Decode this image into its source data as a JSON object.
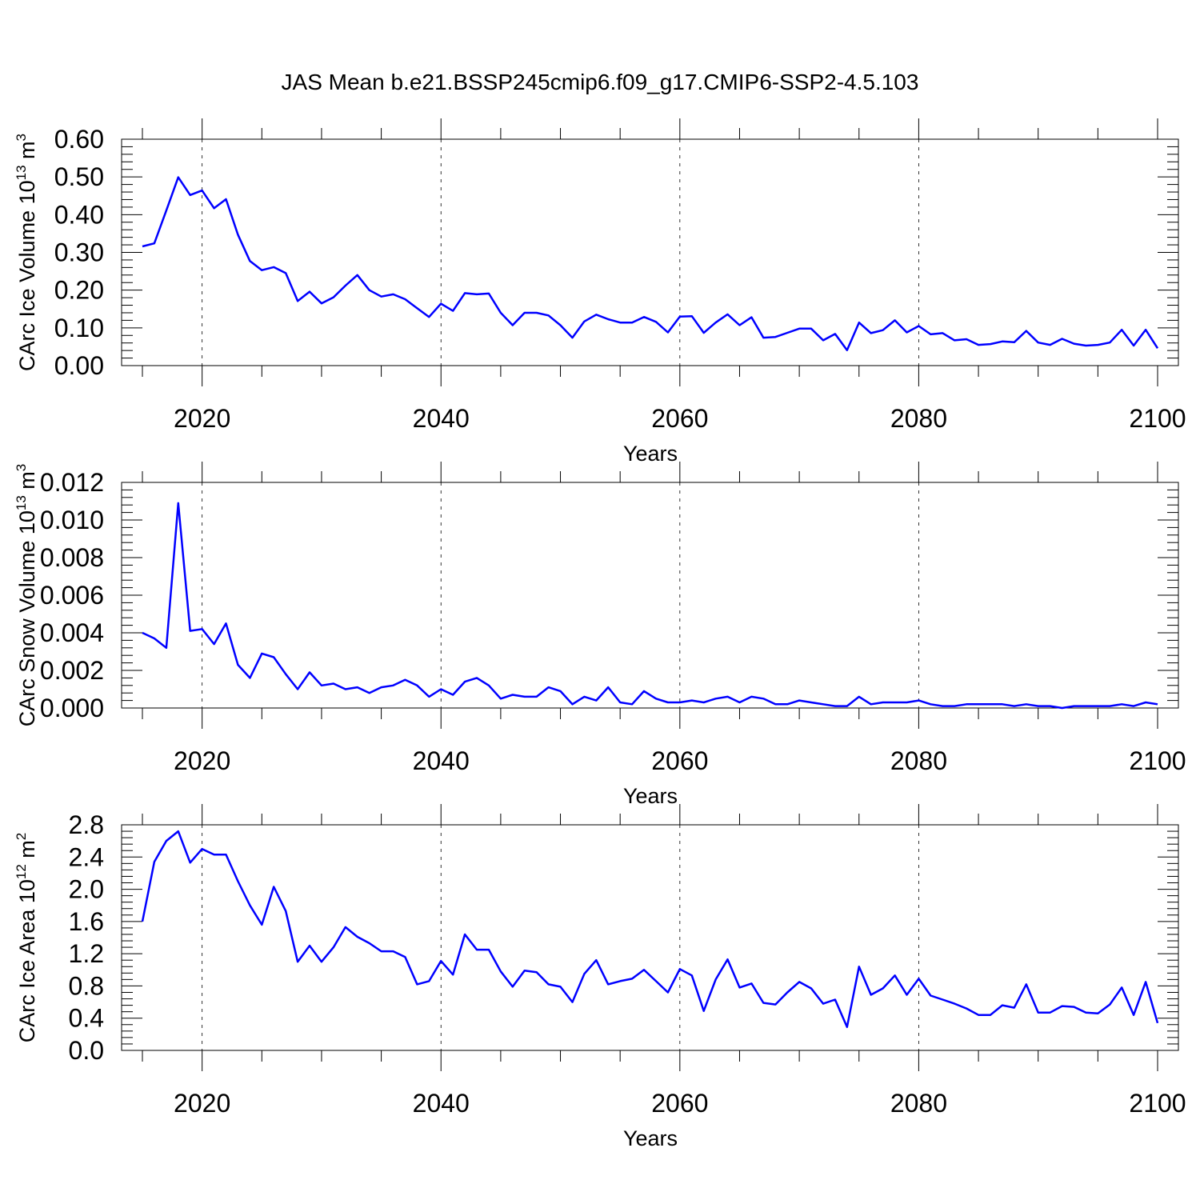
{
  "title": "JAS Mean b.e21.BSSP245cmip6.f09_g17.CMIP6-SSP2-4.5.103",
  "chart_data": [
    {
      "type": "line",
      "xlabel": "Years",
      "ylabel": "CArc Ice Volume 10",
      "ylabel_exp": "13",
      "ylabel_unit": " m",
      "ylabel_unit_exp": "3",
      "xlim": [
        2015,
        2100
      ],
      "ylim": [
        0,
        0.6
      ],
      "xticks": [
        2020,
        2040,
        2060,
        2080,
        2100
      ],
      "yticks": [
        0,
        0.1,
        0.2,
        0.3,
        0.4,
        0.5,
        0.6
      ],
      "ytick_labels": [
        "0.00",
        "0.10",
        "0.20",
        "0.30",
        "0.40",
        "0.50",
        "0.60"
      ],
      "grid": "vertical dashed at major x ticks",
      "color": "#0000ff",
      "x_start": 2015,
      "values": [
        0.316,
        0.324,
        0.411,
        0.499,
        0.452,
        0.464,
        0.417,
        0.441,
        0.347,
        0.277,
        0.253,
        0.261,
        0.245,
        0.171,
        0.196,
        0.165,
        0.181,
        0.212,
        0.24,
        0.2,
        0.183,
        0.189,
        0.176,
        0.152,
        0.129,
        0.164,
        0.145,
        0.192,
        0.189,
        0.191,
        0.14,
        0.107,
        0.14,
        0.14,
        0.133,
        0.107,
        0.074,
        0.117,
        0.135,
        0.123,
        0.114,
        0.114,
        0.129,
        0.116,
        0.088,
        0.13,
        0.131,
        0.087,
        0.114,
        0.136,
        0.107,
        0.128,
        0.074,
        0.076,
        0.087,
        0.098,
        0.098,
        0.067,
        0.084,
        0.041,
        0.114,
        0.086,
        0.094,
        0.12,
        0.088,
        0.105,
        0.083,
        0.086,
        0.067,
        0.07,
        0.055,
        0.057,
        0.064,
        0.062,
        0.092,
        0.061,
        0.055,
        0.071,
        0.058,
        0.053,
        0.055,
        0.061,
        0.095,
        0.053,
        0.095,
        0.046
      ]
    },
    {
      "type": "line",
      "xlabel": "Years",
      "ylabel": "CArc Snow Volume 10",
      "ylabel_exp": "13",
      "ylabel_unit": " m",
      "ylabel_unit_exp": "3",
      "xlim": [
        2015,
        2100
      ],
      "ylim": [
        0,
        0.012
      ],
      "xticks": [
        2020,
        2040,
        2060,
        2080,
        2100
      ],
      "yticks": [
        0,
        0.002,
        0.004,
        0.006,
        0.008,
        0.01,
        0.012
      ],
      "ytick_labels": [
        "0.000",
        "0.002",
        "0.004",
        "0.006",
        "0.008",
        "0.010",
        "0.012"
      ],
      "grid": "vertical dashed at major x ticks",
      "color": "#0000ff",
      "x_start": 2015,
      "values": [
        0.004,
        0.0037,
        0.0032,
        0.0109,
        0.0041,
        0.0042,
        0.0034,
        0.0045,
        0.0023,
        0.0016,
        0.0029,
        0.0027,
        0.0018,
        0.001,
        0.0019,
        0.0012,
        0.0013,
        0.001,
        0.0011,
        0.0008,
        0.0011,
        0.0012,
        0.0015,
        0.0012,
        0.0006,
        0.001,
        0.0007,
        0.0014,
        0.0016,
        0.0012,
        0.0005,
        0.0007,
        0.0006,
        0.0006,
        0.0011,
        0.0009,
        0.0002,
        0.0006,
        0.0004,
        0.0011,
        0.0003,
        0.0002,
        0.0009,
        0.0005,
        0.0003,
        0.0003,
        0.0004,
        0.0003,
        0.0005,
        0.0006,
        0.0003,
        0.0006,
        0.0005,
        0.0002,
        0.0002,
        0.0004,
        0.0003,
        0.0002,
        0.0001,
        0.0001,
        0.0006,
        0.0002,
        0.0003,
        0.0003,
        0.0003,
        0.0004,
        0.0002,
        0.0001,
        0.0001,
        0.0002,
        0.0002,
        0.0002,
        0.0002,
        0.0001,
        0.0002,
        0.0001,
        0.0001,
        0.0,
        0.0001,
        0.0001,
        0.0001,
        0.0001,
        0.0002,
        0.0001,
        0.0003,
        0.0002
      ]
    },
    {
      "type": "line",
      "xlabel": "Years",
      "ylabel": "CArc Ice Area 10",
      "ylabel_exp": "12",
      "ylabel_unit": " m",
      "ylabel_unit_exp": "2",
      "xlim": [
        2015,
        2100
      ],
      "ylim": [
        0,
        2.8
      ],
      "xticks": [
        2020,
        2040,
        2060,
        2080,
        2100
      ],
      "yticks": [
        0,
        0.4,
        0.8,
        1.2,
        1.6,
        2.0,
        2.4,
        2.8
      ],
      "ytick_labels": [
        "0.0",
        "0.4",
        "0.8",
        "1.2",
        "1.6",
        "2.0",
        "2.4",
        "2.8"
      ],
      "grid": "vertical dashed at major x ticks",
      "color": "#0000ff",
      "x_start": 2015,
      "values": [
        1.6,
        2.34,
        2.6,
        2.72,
        2.33,
        2.5,
        2.43,
        2.43,
        2.1,
        1.8,
        1.56,
        2.03,
        1.73,
        1.1,
        1.3,
        1.1,
        1.28,
        1.53,
        1.41,
        1.33,
        1.23,
        1.23,
        1.16,
        0.82,
        0.86,
        1.11,
        0.94,
        1.44,
        1.25,
        1.25,
        0.98,
        0.79,
        0.99,
        0.97,
        0.82,
        0.79,
        0.6,
        0.95,
        1.12,
        0.82,
        0.86,
        0.89,
        1.0,
        0.86,
        0.72,
        1.01,
        0.93,
        0.49,
        0.88,
        1.13,
        0.78,
        0.83,
        0.59,
        0.57,
        0.72,
        0.85,
        0.77,
        0.58,
        0.63,
        0.29,
        1.04,
        0.69,
        0.77,
        0.93,
        0.69,
        0.89,
        0.68,
        0.63,
        0.58,
        0.52,
        0.44,
        0.44,
        0.56,
        0.53,
        0.82,
        0.47,
        0.47,
        0.55,
        0.54,
        0.47,
        0.46,
        0.57,
        0.78,
        0.44,
        0.85,
        0.34
      ]
    }
  ]
}
